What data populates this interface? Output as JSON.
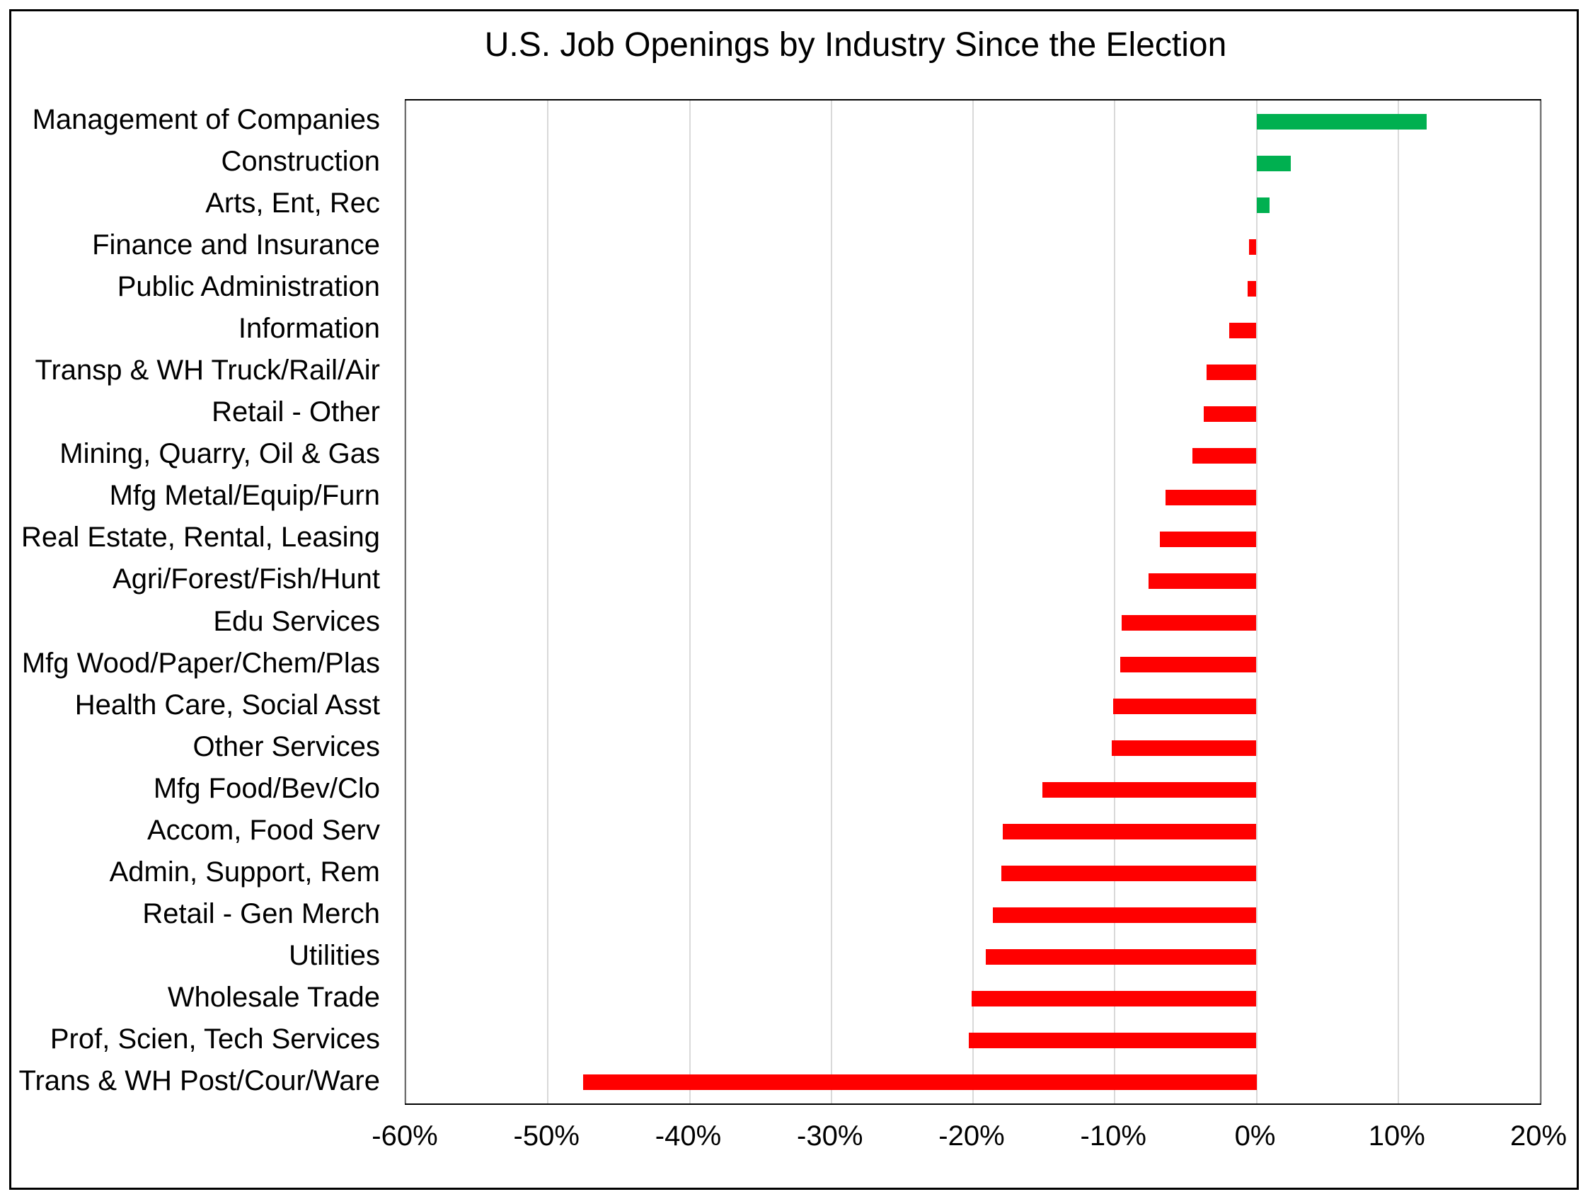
{
  "chart": {
    "colors": {
      "positive_bar": "#00B050",
      "negative_bar": "#FF0000",
      "gridline": "#D9D9D9",
      "frame": "#000000",
      "text": "#000000",
      "background": "#FFFFFF"
    }
  },
  "chart_data": {
    "type": "bar",
    "orientation": "horizontal",
    "title": "U.S. Job Openings by Industry Since the Election",
    "xlabel": "",
    "ylabel": "",
    "unit": "percent",
    "xlim": [
      -60,
      20
    ],
    "grid": "vertical gridlines on",
    "legend": "none",
    "color_rule": "positive values green, negative values red",
    "xticks": [
      {
        "value": -60,
        "label": "-60%"
      },
      {
        "value": -50,
        "label": "-50%"
      },
      {
        "value": -40,
        "label": "-40%"
      },
      {
        "value": -30,
        "label": "-30%"
      },
      {
        "value": -20,
        "label": "-20%"
      },
      {
        "value": -10,
        "label": "-10%"
      },
      {
        "value": 0,
        "label": "0%"
      },
      {
        "value": 10,
        "label": "10%"
      },
      {
        "value": 20,
        "label": "20%"
      }
    ],
    "categories": [
      "Management of Companies",
      "Construction",
      "Arts, Ent, Rec",
      "Finance and Insurance",
      "Public Administration",
      "Information",
      "Transp & WH Truck/Rail/Air",
      "Retail - Other",
      "Mining, Quarry, Oil & Gas",
      "Mfg Metal/Equip/Furn",
      "Real Estate, Rental, Leasing",
      "Agri/Forest/Fish/Hunt",
      "Edu Services",
      "Mfg Wood/Paper/Chem/Plas",
      "Health Care, Social Asst",
      "Other Services",
      "Mfg Food/Bev/Clo",
      "Accom, Food Serv",
      "Admin, Support, Rem",
      "Retail - Gen Merch",
      "Utilities",
      "Wholesale Trade",
      "Prof, Scien, Tech Services",
      "Trans & WH Post/Cour/Ware"
    ],
    "values": [
      12.0,
      2.4,
      0.9,
      -0.5,
      -0.6,
      -1.9,
      -3.5,
      -3.7,
      -4.5,
      -6.4,
      -6.8,
      -7.6,
      -9.5,
      -9.6,
      -10.1,
      -10.2,
      -15.1,
      -17.9,
      -18.0,
      -18.6,
      -19.1,
      -20.1,
      -20.3,
      -47.5
    ]
  }
}
